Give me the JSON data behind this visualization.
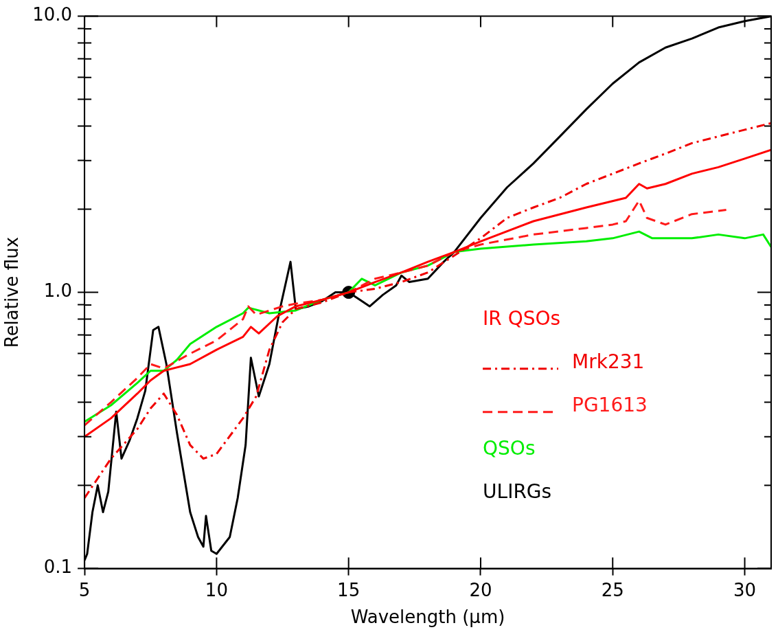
{
  "chart_data": {
    "type": "line",
    "xlabel": "Wavelength (μm)",
    "ylabel": "Relative flux",
    "log": "y",
    "grid": false,
    "legend": "right",
    "marker": "none",
    "xlim": [
      5,
      31
    ],
    "ylim": [
      0.1,
      10
    ],
    "xticks": [
      5,
      10,
      15,
      20,
      25,
      30
    ],
    "yticks": [
      {
        "value": 0.1,
        "label": "0.1"
      },
      {
        "value": 0.2,
        "label": null
      },
      {
        "value": 0.3,
        "label": null
      },
      {
        "value": 0.4,
        "label": null
      },
      {
        "value": 0.5,
        "label": null
      },
      {
        "value": 0.6,
        "label": null
      },
      {
        "value": 0.7,
        "label": null
      },
      {
        "value": 0.8,
        "label": null
      },
      {
        "value": 0.9,
        "label": null
      },
      {
        "value": 1,
        "label": "1.0"
      },
      {
        "value": 2,
        "label": null
      },
      {
        "value": 3,
        "label": null
      },
      {
        "value": 4,
        "label": null
      },
      {
        "value": 5,
        "label": null
      },
      {
        "value": 6,
        "label": null
      },
      {
        "value": 7,
        "label": null
      },
      {
        "value": 8,
        "label": null
      },
      {
        "value": 9,
        "label": null
      },
      {
        "value": 10,
        "label": "10.0"
      }
    ],
    "series": [
      {
        "name": "IR QSOs",
        "color": "#ff0000",
        "line_style": "solid",
        "x": [
          5,
          6,
          7,
          7.5,
          8,
          9,
          10,
          11,
          11.3,
          11.6,
          12.3,
          13,
          14,
          15,
          16,
          17,
          18,
          19,
          20,
          22,
          24,
          25.5,
          26,
          26.3,
          27,
          28,
          29,
          30,
          31
        ],
        "values": [
          0.3,
          0.35,
          0.43,
          0.48,
          0.52,
          0.55,
          0.62,
          0.69,
          0.75,
          0.71,
          0.82,
          0.89,
          0.94,
          1.0,
          1.09,
          1.18,
          1.29,
          1.4,
          1.53,
          1.81,
          2.03,
          2.2,
          2.47,
          2.38,
          2.47,
          2.69,
          2.84,
          3.05,
          3.28
        ]
      },
      {
        "name": "Mrk231",
        "color": "#f00000",
        "line_style": "dashdot",
        "x": [
          5,
          6,
          7,
          7.5,
          8,
          8.5,
          9,
          9.5,
          10,
          11,
          11.5,
          12,
          12.5,
          13,
          14,
          15,
          16,
          17,
          18,
          19,
          20,
          21,
          22,
          23,
          24,
          25,
          26,
          27,
          28,
          29,
          30,
          31
        ],
        "values": [
          0.18,
          0.25,
          0.32,
          0.38,
          0.43,
          0.36,
          0.28,
          0.25,
          0.26,
          0.35,
          0.42,
          0.62,
          0.78,
          0.87,
          0.92,
          1.0,
          1.03,
          1.09,
          1.18,
          1.36,
          1.57,
          1.86,
          2.03,
          2.2,
          2.47,
          2.69,
          2.93,
          3.18,
          3.47,
          3.67,
          3.88,
          4.1
        ]
      },
      {
        "name": "PG1613",
        "color": "#ff1a1a",
        "line_style": "dashed",
        "x": [
          5,
          6,
          7,
          7.5,
          8,
          9,
          10,
          11,
          11.2,
          11.5,
          12.5,
          13,
          14,
          15,
          16,
          17,
          18,
          19,
          20,
          22,
          24,
          25,
          25.5,
          26,
          26.3,
          27,
          28,
          29.3
        ],
        "values": [
          0.33,
          0.4,
          0.49,
          0.55,
          0.53,
          0.6,
          0.67,
          0.8,
          0.89,
          0.83,
          0.89,
          0.91,
          0.94,
          1.0,
          1.12,
          1.18,
          1.25,
          1.4,
          1.49,
          1.62,
          1.71,
          1.76,
          1.81,
          2.15,
          1.86,
          1.76,
          1.92,
          1.99
        ]
      },
      {
        "name": "QSOs",
        "color": "#00ee00",
        "line_style": "solid",
        "x": [
          5,
          6,
          7,
          7.5,
          8,
          8.5,
          9,
          10,
          11,
          11.2,
          12,
          13,
          14,
          15,
          15.5,
          16,
          17,
          18,
          19,
          20,
          22,
          24,
          25,
          26,
          26.5,
          28,
          29,
          30,
          30.7,
          31
        ],
        "values": [
          0.34,
          0.39,
          0.47,
          0.52,
          0.52,
          0.57,
          0.65,
          0.75,
          0.84,
          0.88,
          0.84,
          0.86,
          0.94,
          1.0,
          1.12,
          1.06,
          1.18,
          1.25,
          1.4,
          1.44,
          1.49,
          1.53,
          1.57,
          1.66,
          1.57,
          1.57,
          1.62,
          1.57,
          1.62,
          1.46
        ]
      },
      {
        "name": "ULIRGs",
        "color": "#000000",
        "line_style": "solid",
        "x": [
          5,
          5.1,
          5.3,
          5.5,
          5.7,
          5.9,
          6.2,
          6.4,
          6.7,
          7,
          7.3,
          7.6,
          7.8,
          8.1,
          8.5,
          9,
          9.3,
          9.5,
          9.6,
          9.8,
          10,
          10.5,
          10.8,
          11.1,
          11.3,
          11.6,
          12,
          12.4,
          12.8,
          13,
          13.5,
          14,
          14.5,
          15,
          15.5,
          15.8,
          16.3,
          16.8,
          17,
          17.3,
          18,
          18.6,
          19,
          20,
          21,
          22,
          23,
          24,
          25,
          26,
          27,
          28,
          29,
          30,
          31
        ],
        "values": [
          0.107,
          0.113,
          0.16,
          0.2,
          0.16,
          0.19,
          0.37,
          0.25,
          0.29,
          0.35,
          0.44,
          0.73,
          0.75,
          0.55,
          0.31,
          0.16,
          0.13,
          0.12,
          0.155,
          0.116,
          0.113,
          0.13,
          0.18,
          0.28,
          0.58,
          0.42,
          0.55,
          0.87,
          1.29,
          0.87,
          0.89,
          0.93,
          1.0,
          1.0,
          0.93,
          0.89,
          0.98,
          1.06,
          1.15,
          1.09,
          1.12,
          1.29,
          1.4,
          1.86,
          2.4,
          2.93,
          3.67,
          4.6,
          5.7,
          6.8,
          7.7,
          8.3,
          9.1,
          9.6,
          10.0
        ]
      },
      {
        "type": "scatter",
        "color": "#000000",
        "marker": "circle",
        "x": [
          15
        ],
        "values": [
          1.0
        ]
      }
    ]
  }
}
